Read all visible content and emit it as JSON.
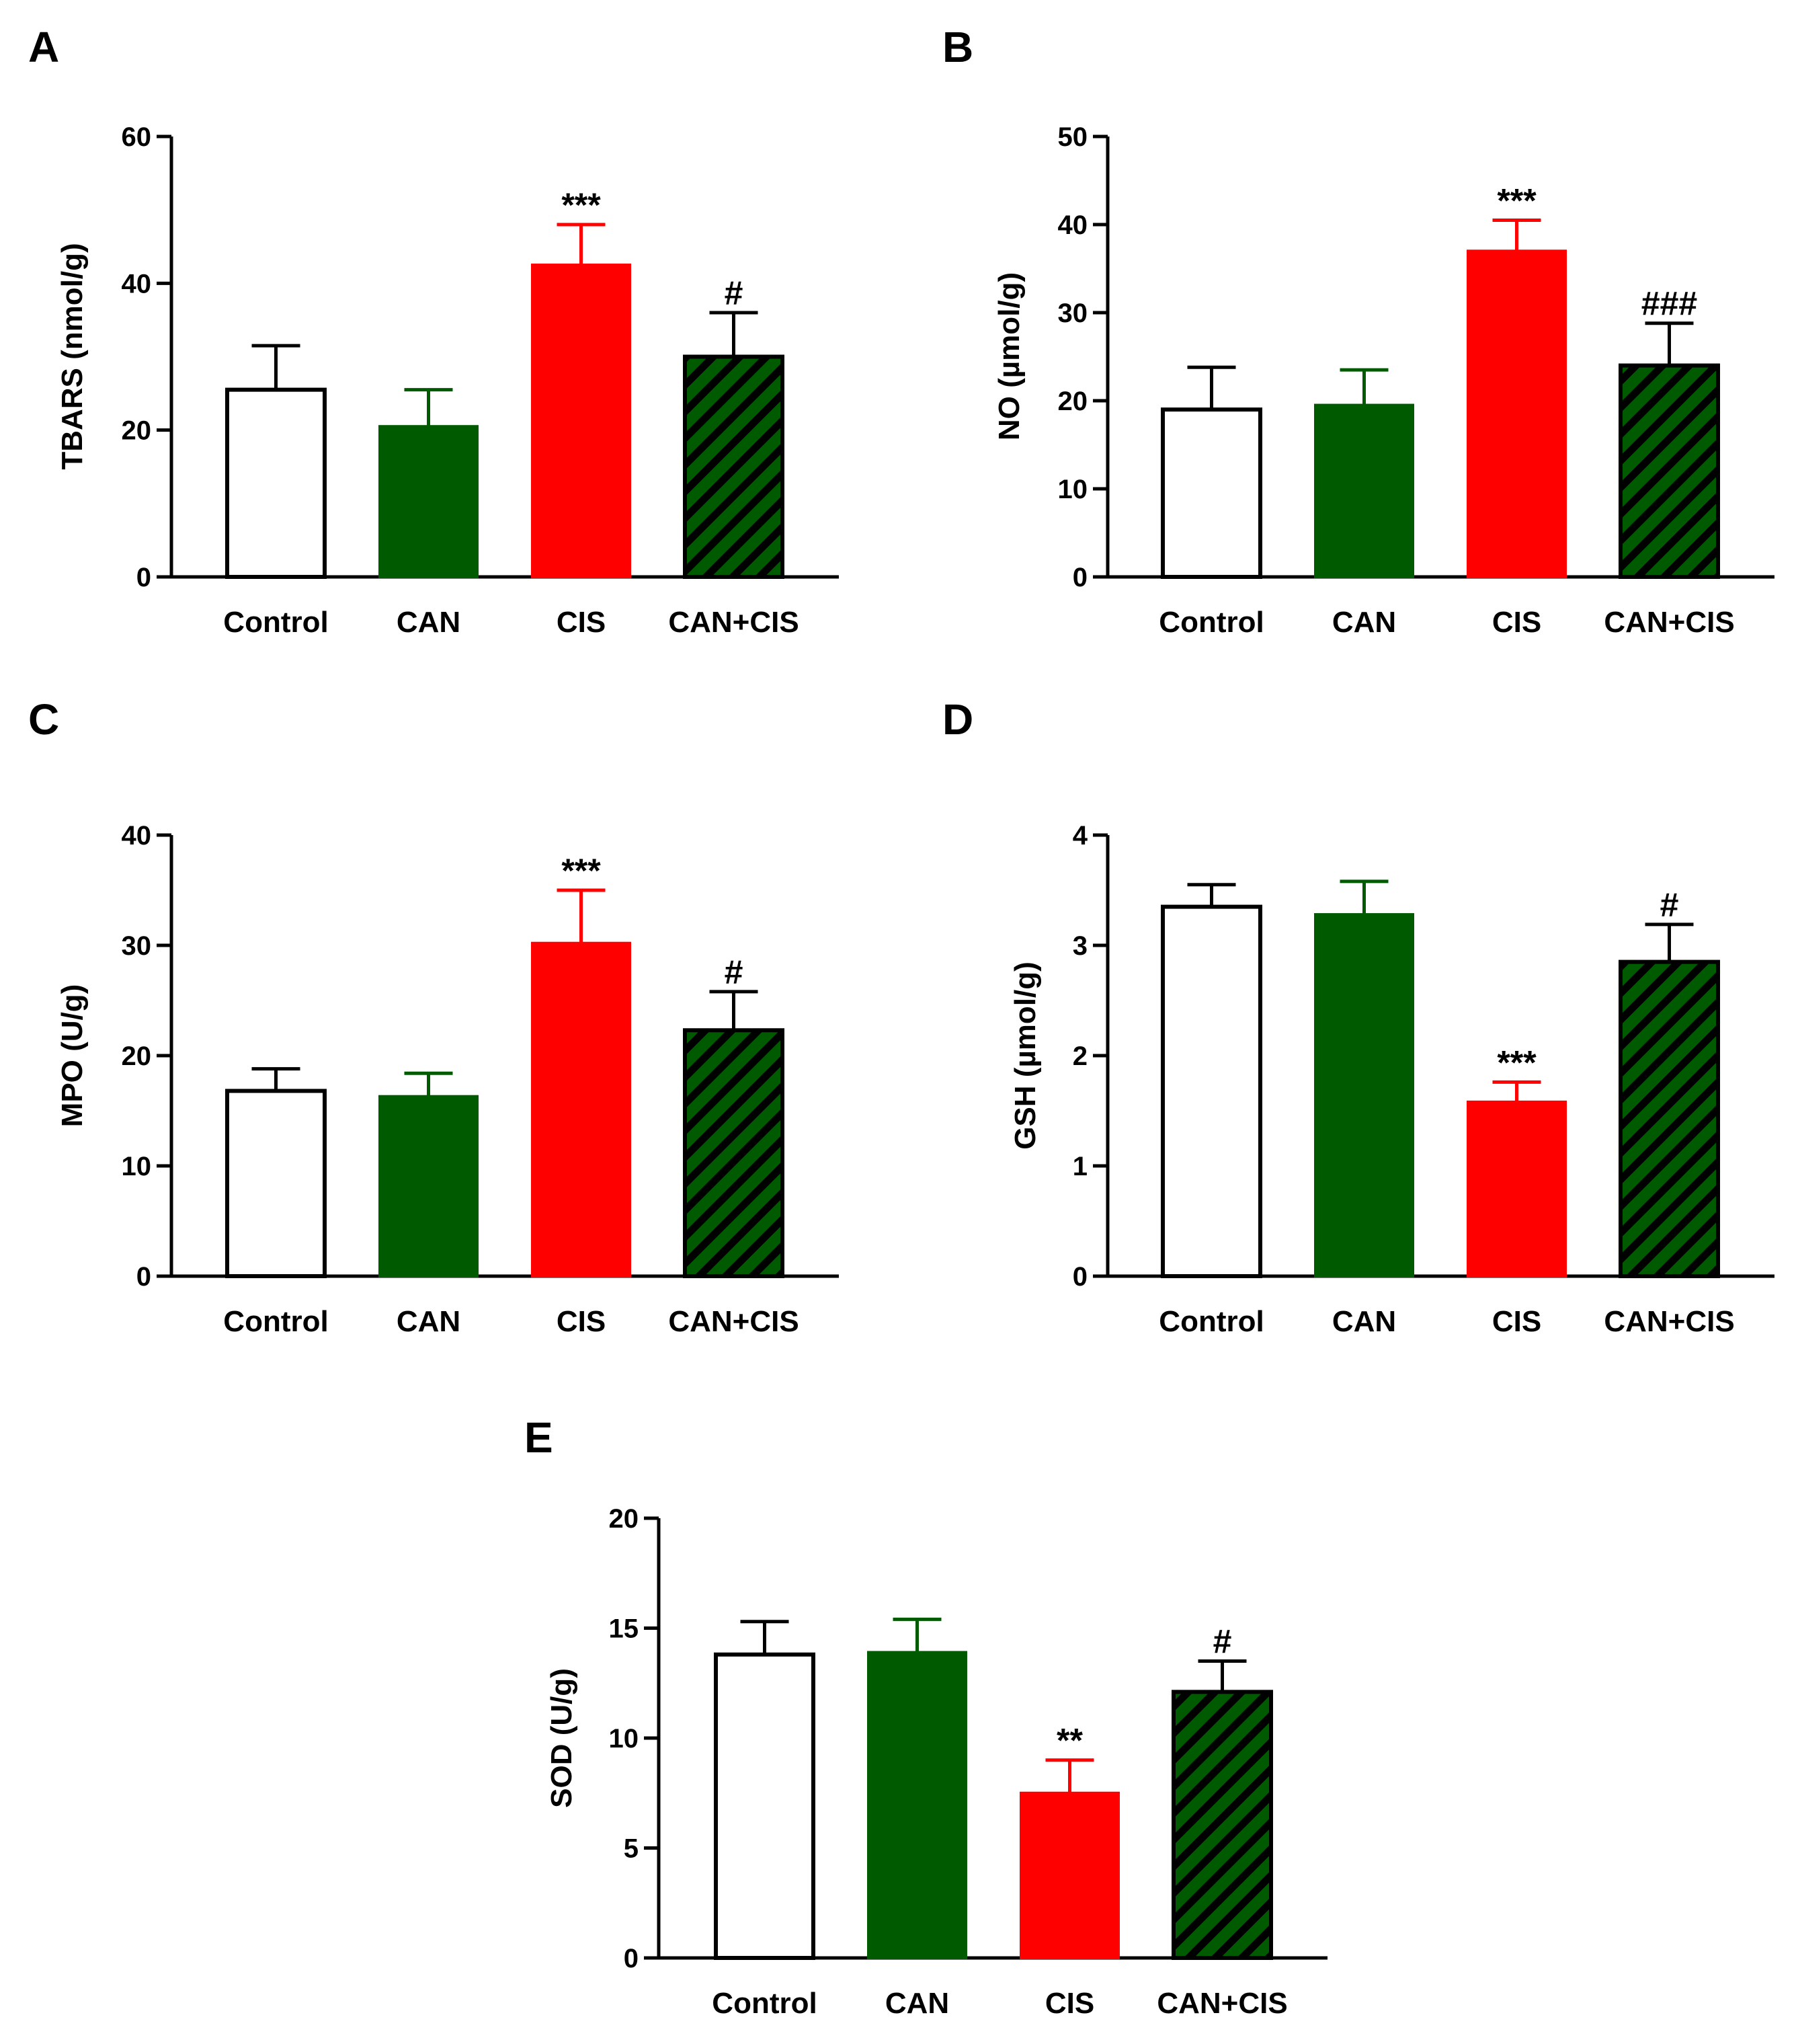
{
  "colors": {
    "axis": "#000000",
    "white_bar": "#ffffff",
    "green": "#005a00",
    "red": "#ff0000",
    "hatch_bg": "#005a00",
    "hatch_line": "#000000"
  },
  "chart_data": [
    {
      "type": "bar",
      "panel": "A",
      "ylabel": "TBARS (nmol/g)",
      "ylim": [
        0,
        60
      ],
      "yticks": [
        "0",
        "20",
        "40",
        "60"
      ],
      "categories": [
        "Control",
        "CAN",
        "CIS",
        "CAN+CIS"
      ],
      "values": [
        25.5,
        20.5,
        42.5,
        30
      ],
      "errors": [
        6,
        5,
        5.5,
        6
      ],
      "annotations": [
        "",
        "",
        "***",
        "#"
      ]
    },
    {
      "type": "bar",
      "panel": "B",
      "ylabel": "NO (µmol/g)",
      "ylim": [
        0,
        50
      ],
      "yticks": [
        "0",
        "10",
        "20",
        "30",
        "40",
        "50"
      ],
      "categories": [
        "Control",
        "CAN",
        "CIS",
        "CAN+CIS"
      ],
      "values": [
        19,
        19.5,
        37,
        24
      ],
      "errors": [
        4.8,
        4,
        3.5,
        4.8
      ],
      "annotations": [
        "",
        "",
        "***",
        "###"
      ]
    },
    {
      "type": "bar",
      "panel": "C",
      "ylabel": "MPO (U/g)",
      "ylim": [
        0,
        40
      ],
      "yticks": [
        "0",
        "10",
        "20",
        "30",
        "40"
      ],
      "categories": [
        "Control",
        "CAN",
        "CIS",
        "CAN+CIS"
      ],
      "values": [
        16.8,
        16.3,
        30.2,
        22.3
      ],
      "errors": [
        2,
        2.1,
        4.8,
        3.5
      ],
      "annotations": [
        "",
        "",
        "***",
        "#"
      ]
    },
    {
      "type": "bar",
      "panel": "D",
      "ylabel": "GSH (µmol/g)",
      "ylim": [
        0,
        4
      ],
      "yticks": [
        "0",
        "1",
        "2",
        "3",
        "4"
      ],
      "categories": [
        "Control",
        "CAN",
        "CIS",
        "CAN+CIS"
      ],
      "values": [
        3.35,
        3.28,
        1.58,
        2.85
      ],
      "errors": [
        0.2,
        0.3,
        0.18,
        0.34
      ],
      "annotations": [
        "",
        "",
        "***",
        "#"
      ]
    },
    {
      "type": "bar",
      "panel": "E",
      "ylabel": "SOD (U/g)",
      "ylim": [
        0,
        20
      ],
      "yticks": [
        "0",
        "5",
        "10",
        "15",
        "20"
      ],
      "categories": [
        "Control",
        "CAN",
        "CIS",
        "CAN+CIS"
      ],
      "values": [
        13.8,
        13.9,
        7.5,
        12.1
      ],
      "errors": [
        1.5,
        1.5,
        1.5,
        1.4
      ],
      "annotations": [
        "",
        "",
        "**",
        "#"
      ]
    }
  ]
}
